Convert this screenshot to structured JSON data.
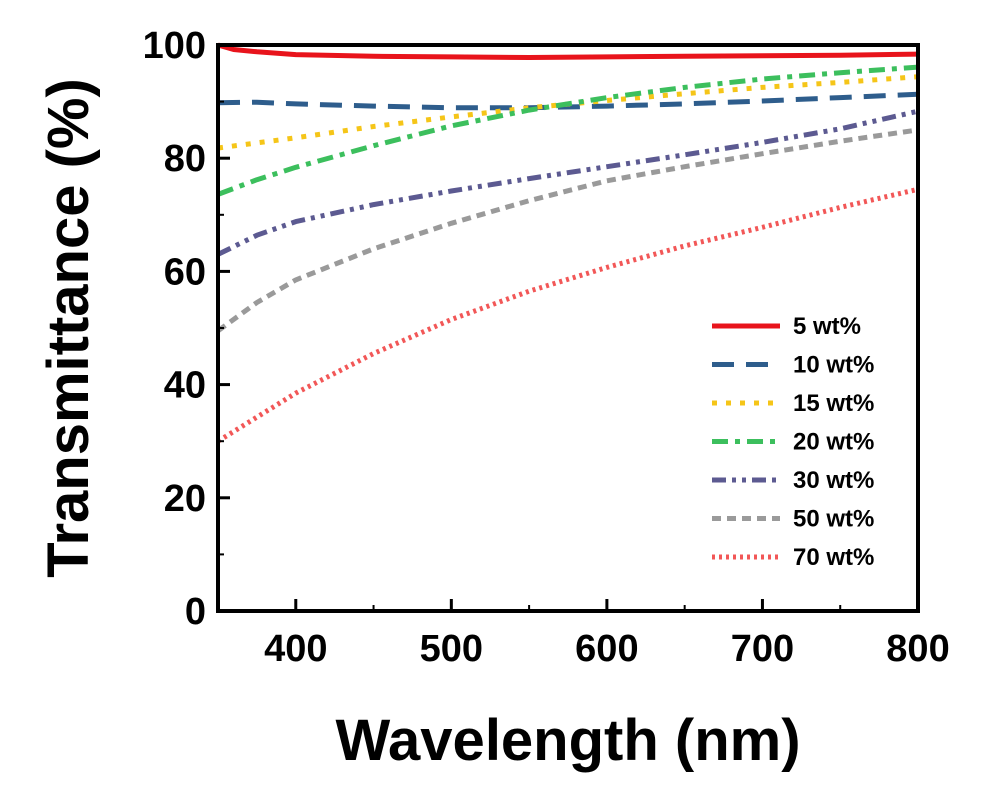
{
  "chart_data": {
    "type": "line",
    "xlabel": "Wavelength (nm)",
    "ylabel": "Transmittance (%)",
    "xlim": [
      350,
      800
    ],
    "ylim": [
      0,
      100
    ],
    "xticks": [
      400,
      500,
      600,
      700,
      800
    ],
    "xtick_labels": [
      "400",
      "500",
      "600",
      "700",
      "800"
    ],
    "yticks": [
      0,
      20,
      40,
      60,
      80,
      100
    ],
    "ytick_labels": [
      "0",
      "20",
      "40",
      "60",
      "80",
      "100"
    ],
    "grid": false,
    "legend_position": "bottom-right",
    "series": [
      {
        "name": "5 wt%",
        "color": "#e8141c",
        "style": "solid",
        "x": [
          350,
          360,
          375,
          400,
          450,
          500,
          550,
          600,
          650,
          700,
          750,
          800
        ],
        "y": [
          100.0,
          99.2,
          98.8,
          98.3,
          98.0,
          97.9,
          97.8,
          97.9,
          98.0,
          98.1,
          98.2,
          98.4
        ]
      },
      {
        "name": "10 wt%",
        "color": "#2e5d8c",
        "style": "dash",
        "x": [
          350,
          375,
          400,
          450,
          500,
          550,
          600,
          650,
          700,
          750,
          800
        ],
        "y": [
          89.8,
          89.9,
          89.6,
          89.2,
          88.9,
          88.9,
          89.2,
          89.6,
          90.1,
          90.7,
          91.3
        ]
      },
      {
        "name": "15 wt%",
        "color": "#f5c518",
        "style": "short-dot",
        "x": [
          350,
          400,
          450,
          500,
          550,
          600,
          650,
          700,
          750,
          800
        ],
        "y": [
          81.8,
          83.6,
          85.6,
          87.3,
          88.9,
          90.2,
          91.4,
          92.5,
          93.4,
          94.4
        ]
      },
      {
        "name": "20 wt%",
        "color": "#3cbf5d",
        "style": "dash-dot",
        "x": [
          350,
          375,
          400,
          450,
          500,
          550,
          600,
          650,
          700,
          750,
          800
        ],
        "y": [
          73.6,
          76.2,
          78.4,
          82.2,
          85.7,
          88.5,
          90.7,
          92.5,
          94.0,
          95.1,
          96.1
        ]
      },
      {
        "name": "30 wt%",
        "color": "#5c5a91",
        "style": "dash-dot-dot",
        "x": [
          350,
          375,
          400,
          450,
          500,
          550,
          600,
          650,
          700,
          750,
          800
        ],
        "y": [
          63.0,
          66.4,
          68.8,
          71.8,
          74.2,
          76.4,
          78.5,
          80.6,
          82.8,
          85.2,
          88.3
        ]
      },
      {
        "name": "50 wt%",
        "color": "#9a9a9a",
        "style": "short-dash",
        "x": [
          350,
          375,
          400,
          450,
          500,
          550,
          600,
          650,
          700,
          750,
          800
        ],
        "y": [
          49.5,
          54.5,
          58.5,
          64.0,
          68.5,
          72.5,
          76.0,
          78.5,
          80.8,
          83.0,
          85.0
        ]
      },
      {
        "name": "70 wt%",
        "color": "#f25757",
        "style": "dot",
        "x": [
          350,
          400,
          450,
          500,
          550,
          600,
          650,
          700,
          750,
          800
        ],
        "y": [
          30.0,
          38.5,
          45.5,
          51.5,
          56.5,
          60.7,
          64.5,
          67.8,
          71.3,
          74.5
        ]
      }
    ]
  }
}
